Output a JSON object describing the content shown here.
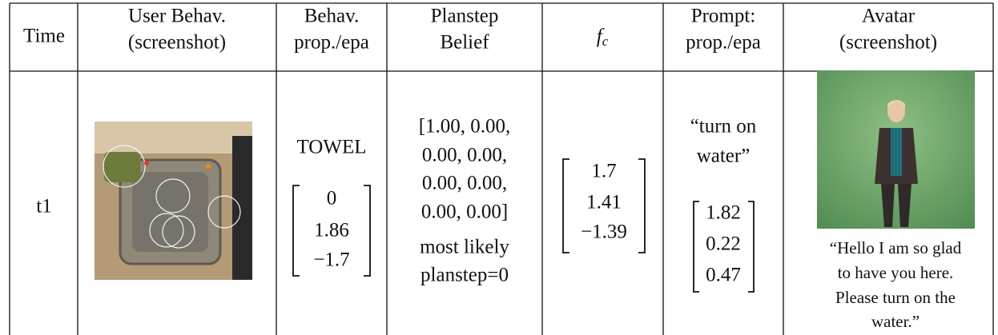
{
  "table": {
    "header": [
      {
        "lines": [
          "Time"
        ]
      },
      {
        "lines": [
          "User Behav.",
          "(screenshot)"
        ]
      },
      {
        "lines": [
          "Behav.",
          "prop./epa"
        ]
      },
      {
        "lines": [
          "Planstep",
          "Belief"
        ]
      },
      {
        "symbol": "f",
        "subscript": "c"
      },
      {
        "lines": [
          "Prompt:",
          "prop./epa"
        ]
      },
      {
        "lines": [
          "Avatar",
          "(screenshot)"
        ]
      }
    ],
    "rows": [
      {
        "time": "t1",
        "behav_prop": "TOWEL",
        "behav_epa": [
          "0",
          "1.86",
          "−1.7"
        ],
        "planstep_belief": [
          "[1.00, 0.00,",
          "0.00, 0.00,",
          "0.00, 0.00,",
          "0.00, 0.00]",
          "most likely",
          "planstep=0"
        ],
        "fc": [
          "1.7",
          "1.41",
          "−1.39"
        ],
        "prompt_prop": [
          "“turn on",
          "water”"
        ],
        "prompt_epa": [
          "1.82",
          "0.22",
          "0.47"
        ],
        "avatar_caption": [
          "“Hello I am so glad",
          "to have you here.",
          "Please turn on the",
          "water.”"
        ]
      }
    ]
  }
}
